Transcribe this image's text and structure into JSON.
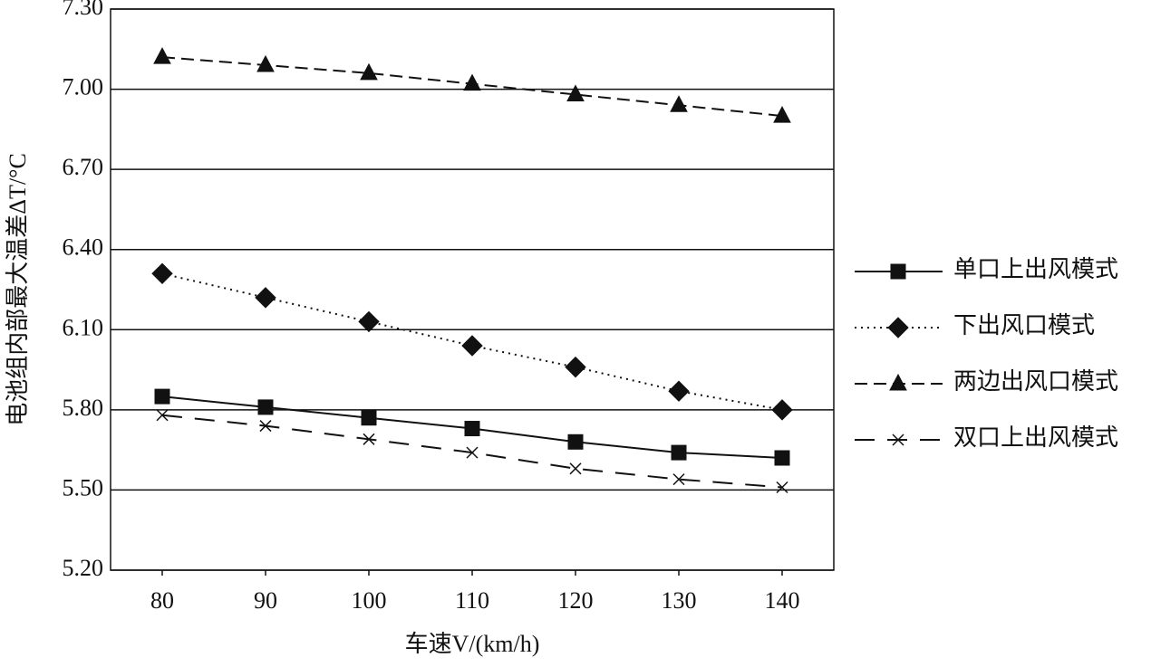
{
  "chart_data": {
    "type": "line",
    "y_label": "电池组内部最大温差ΔT/°C",
    "x_label": "车速V/(km/h)",
    "x": [
      80,
      90,
      100,
      110,
      120,
      130,
      140
    ],
    "xlim": [
      75,
      145
    ],
    "xticks": [
      80,
      90,
      100,
      110,
      120,
      130,
      140
    ],
    "ylim": [
      5.2,
      7.3
    ],
    "yticks": [
      {
        "value": 5.2,
        "label": "5.20"
      },
      {
        "value": 5.5,
        "label": "5.50"
      },
      {
        "value": 5.8,
        "label": "5.80"
      },
      {
        "value": 6.1,
        "label": "6.10"
      },
      {
        "value": 6.4,
        "label": "6.40"
      },
      {
        "value": 6.7,
        "label": "6.70"
      },
      {
        "value": 7.0,
        "label": "7.00"
      },
      {
        "value": 7.3,
        "label": "7.30"
      }
    ],
    "grid": true,
    "legend": "right",
    "series": [
      {
        "name": "单口上出风模式",
        "color": "#111111",
        "marker": "square",
        "dash": "solid",
        "values": [
          5.85,
          5.81,
          5.77,
          5.73,
          5.68,
          5.64,
          5.62
        ]
      },
      {
        "name": "下出风口模式",
        "color": "#111111",
        "marker": "diamond",
        "dash": "dotted",
        "values": [
          6.31,
          6.22,
          6.13,
          6.04,
          5.96,
          5.87,
          5.8
        ]
      },
      {
        "name": "两边出风口模式",
        "color": "#111111",
        "marker": "triangle",
        "dash": "dashed",
        "values": [
          7.12,
          7.09,
          7.06,
          7.02,
          6.98,
          6.94,
          6.9
        ]
      },
      {
        "name": "双口上出风模式",
        "color": "#111111",
        "marker": "x",
        "dash": "longdash",
        "values": [
          5.78,
          5.74,
          5.69,
          5.64,
          5.58,
          5.54,
          5.51
        ]
      }
    ]
  }
}
